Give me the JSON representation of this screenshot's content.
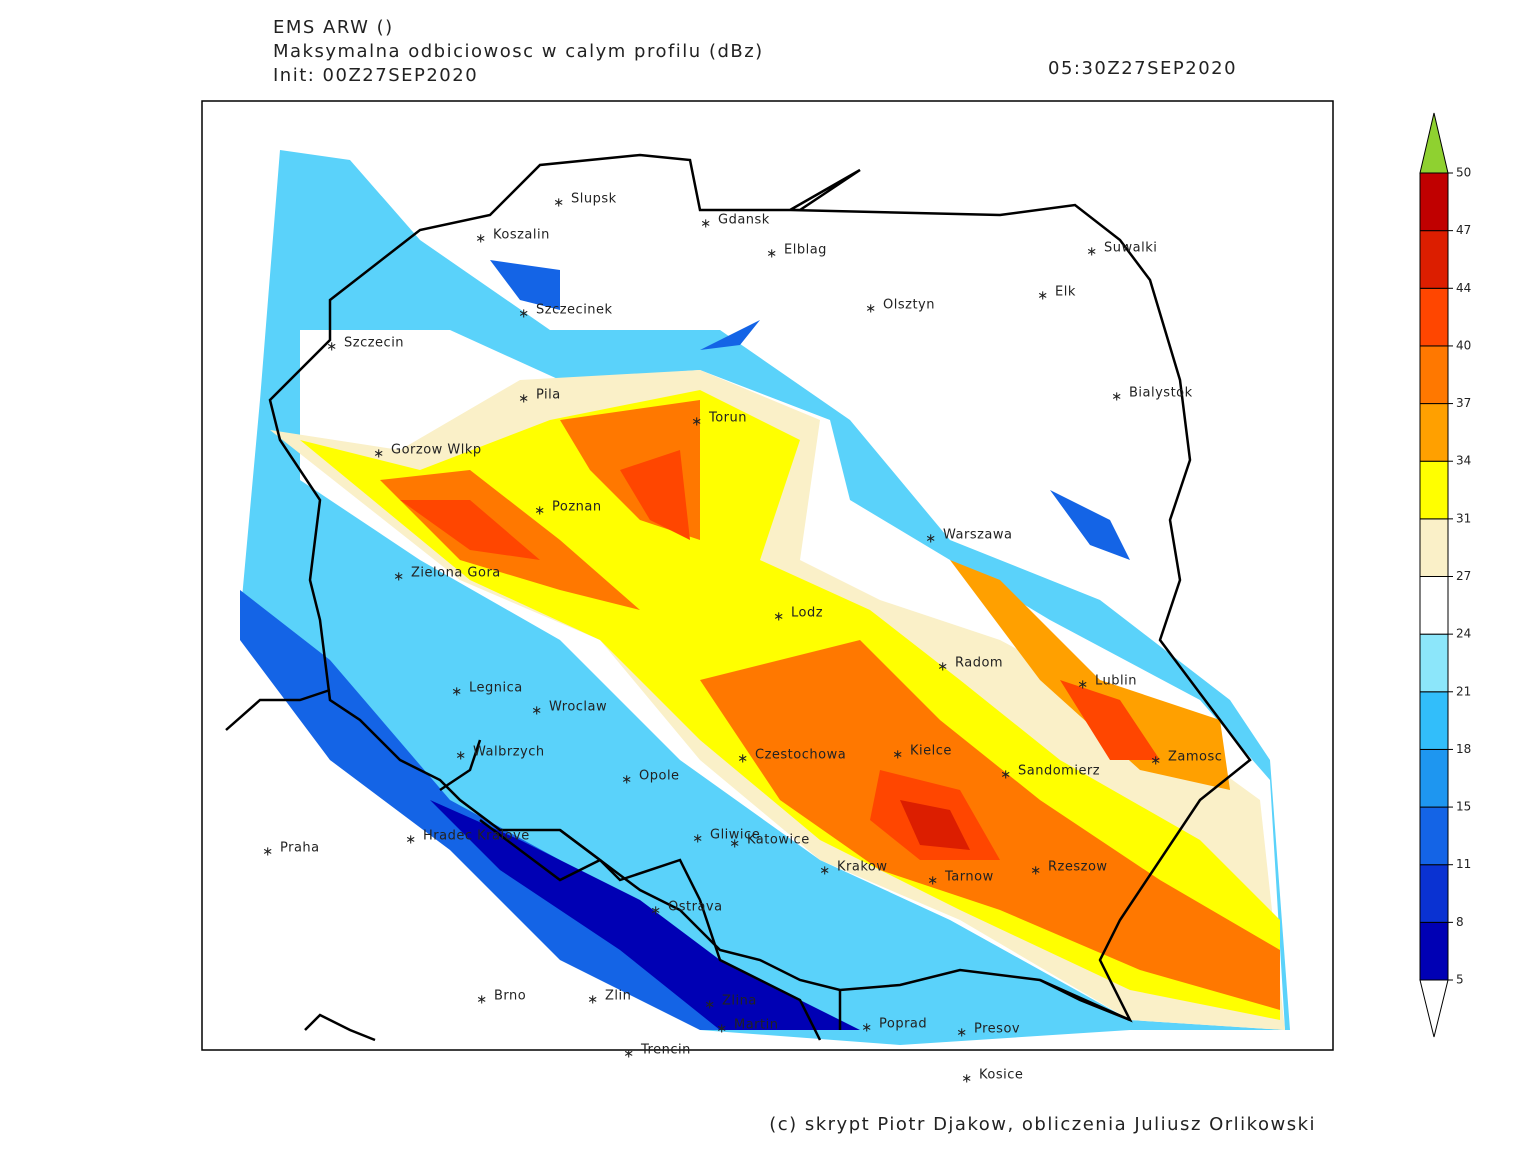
{
  "header": {
    "model": "EMS ARW ()",
    "field": "Maksymalna odbiciowosc w calym profilu (dBz)",
    "init": "Init: 00Z27SEP2020",
    "valid": "05:30Z27SEP2020"
  },
  "cities": [
    "Slupsk",
    "Koszalin",
    "Gdansk",
    "Elblag",
    "Suwalki",
    "Elk",
    "Olsztyn",
    "Szczecinek",
    "Szczecin",
    "Bialystok",
    "Pila",
    "Torun",
    "Gorzow Wlkp",
    "Poznan",
    "Warszawa",
    "Zielona Gora",
    "Lodz",
    "Radom",
    "Lublin",
    "Legnica",
    "Wroclaw",
    "Walbrzych",
    "Czestochowa",
    "Kielce",
    "Zamosc",
    "Sandomierz",
    "Opole",
    "Hradec Kralove",
    "Praha",
    "Gliwice",
    "Katowice",
    "Krakow",
    "Tarnow",
    "Rzeszow",
    "Ostrava",
    "Brno",
    "Zlin",
    "Zlina",
    "Martin",
    "Poprad",
    "Presov",
    "Trencin",
    "Kosice"
  ],
  "colorbar": {
    "ticks": [
      5,
      8,
      11,
      15,
      18,
      21,
      24,
      27,
      31,
      34,
      37,
      40,
      44,
      47,
      50
    ],
    "colors": [
      "#0000b4",
      "#0a32d2",
      "#1464e6",
      "#1e96f0",
      "#32befa",
      "#8ce6fa",
      "#ffffff",
      "#faf0c8",
      "#ffff00",
      "#ffa000",
      "#ff7800",
      "#ff4600",
      "#dc1e00",
      "#c00000"
    ],
    "under_color": "#ffffff",
    "over_color": "#8fd130"
  },
  "credit": "(c) skrypt Piotr Djakow, obliczenia Juliusz Orlikowski"
}
